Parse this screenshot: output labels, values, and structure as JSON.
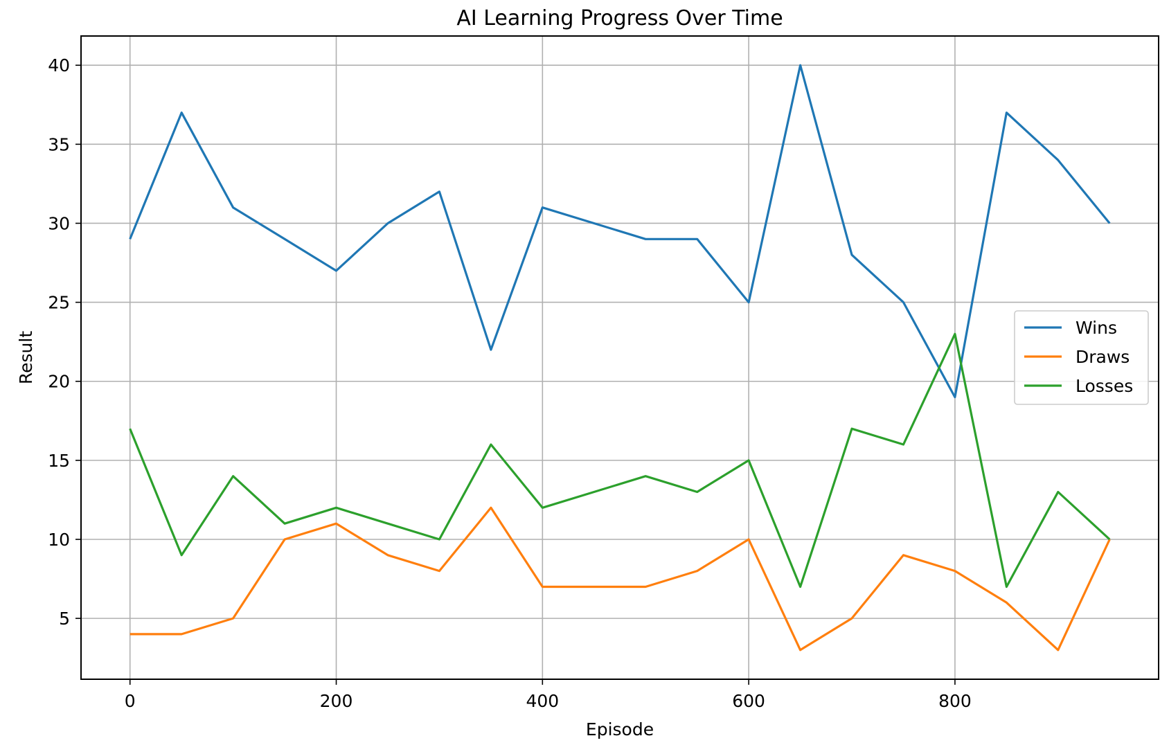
{
  "chart_data": {
    "type": "line",
    "title": "AI Learning Progress Over Time",
    "xlabel": "Episode",
    "ylabel": "Result",
    "x": [
      0,
      50,
      100,
      150,
      200,
      250,
      300,
      350,
      400,
      450,
      500,
      550,
      600,
      650,
      700,
      750,
      800,
      850,
      900,
      950
    ],
    "xlim": [
      -47.5,
      997.5
    ],
    "ylim": [
      1.15,
      41.85
    ],
    "xticks": [
      0,
      200,
      400,
      600,
      800
    ],
    "xtick_labels": [
      "0",
      "200",
      "400",
      "600",
      "800"
    ],
    "yticks": [
      5,
      10,
      15,
      20,
      25,
      30,
      35,
      40
    ],
    "ytick_labels": [
      "5",
      "10",
      "15",
      "20",
      "25",
      "30",
      "35",
      "40"
    ],
    "grid": true,
    "legend_position": "center-right",
    "series": [
      {
        "name": "Wins",
        "color": "#1f77b4",
        "values": [
          29,
          37,
          31,
          29,
          27,
          30,
          32,
          22,
          31,
          30,
          29,
          29,
          25,
          40,
          28,
          25,
          19,
          37,
          34,
          30
        ]
      },
      {
        "name": "Draws",
        "color": "#ff7f0e",
        "values": [
          4,
          4,
          5,
          10,
          11,
          9,
          8,
          12,
          7,
          7,
          7,
          8,
          10,
          3,
          5,
          9,
          8,
          6,
          3,
          10
        ]
      },
      {
        "name": "Losses",
        "color": "#2ca02c",
        "values": [
          17,
          9,
          14,
          11,
          12,
          11,
          10,
          16,
          12,
          13,
          14,
          13,
          15,
          7,
          17,
          16,
          23,
          7,
          13,
          10
        ]
      }
    ]
  }
}
